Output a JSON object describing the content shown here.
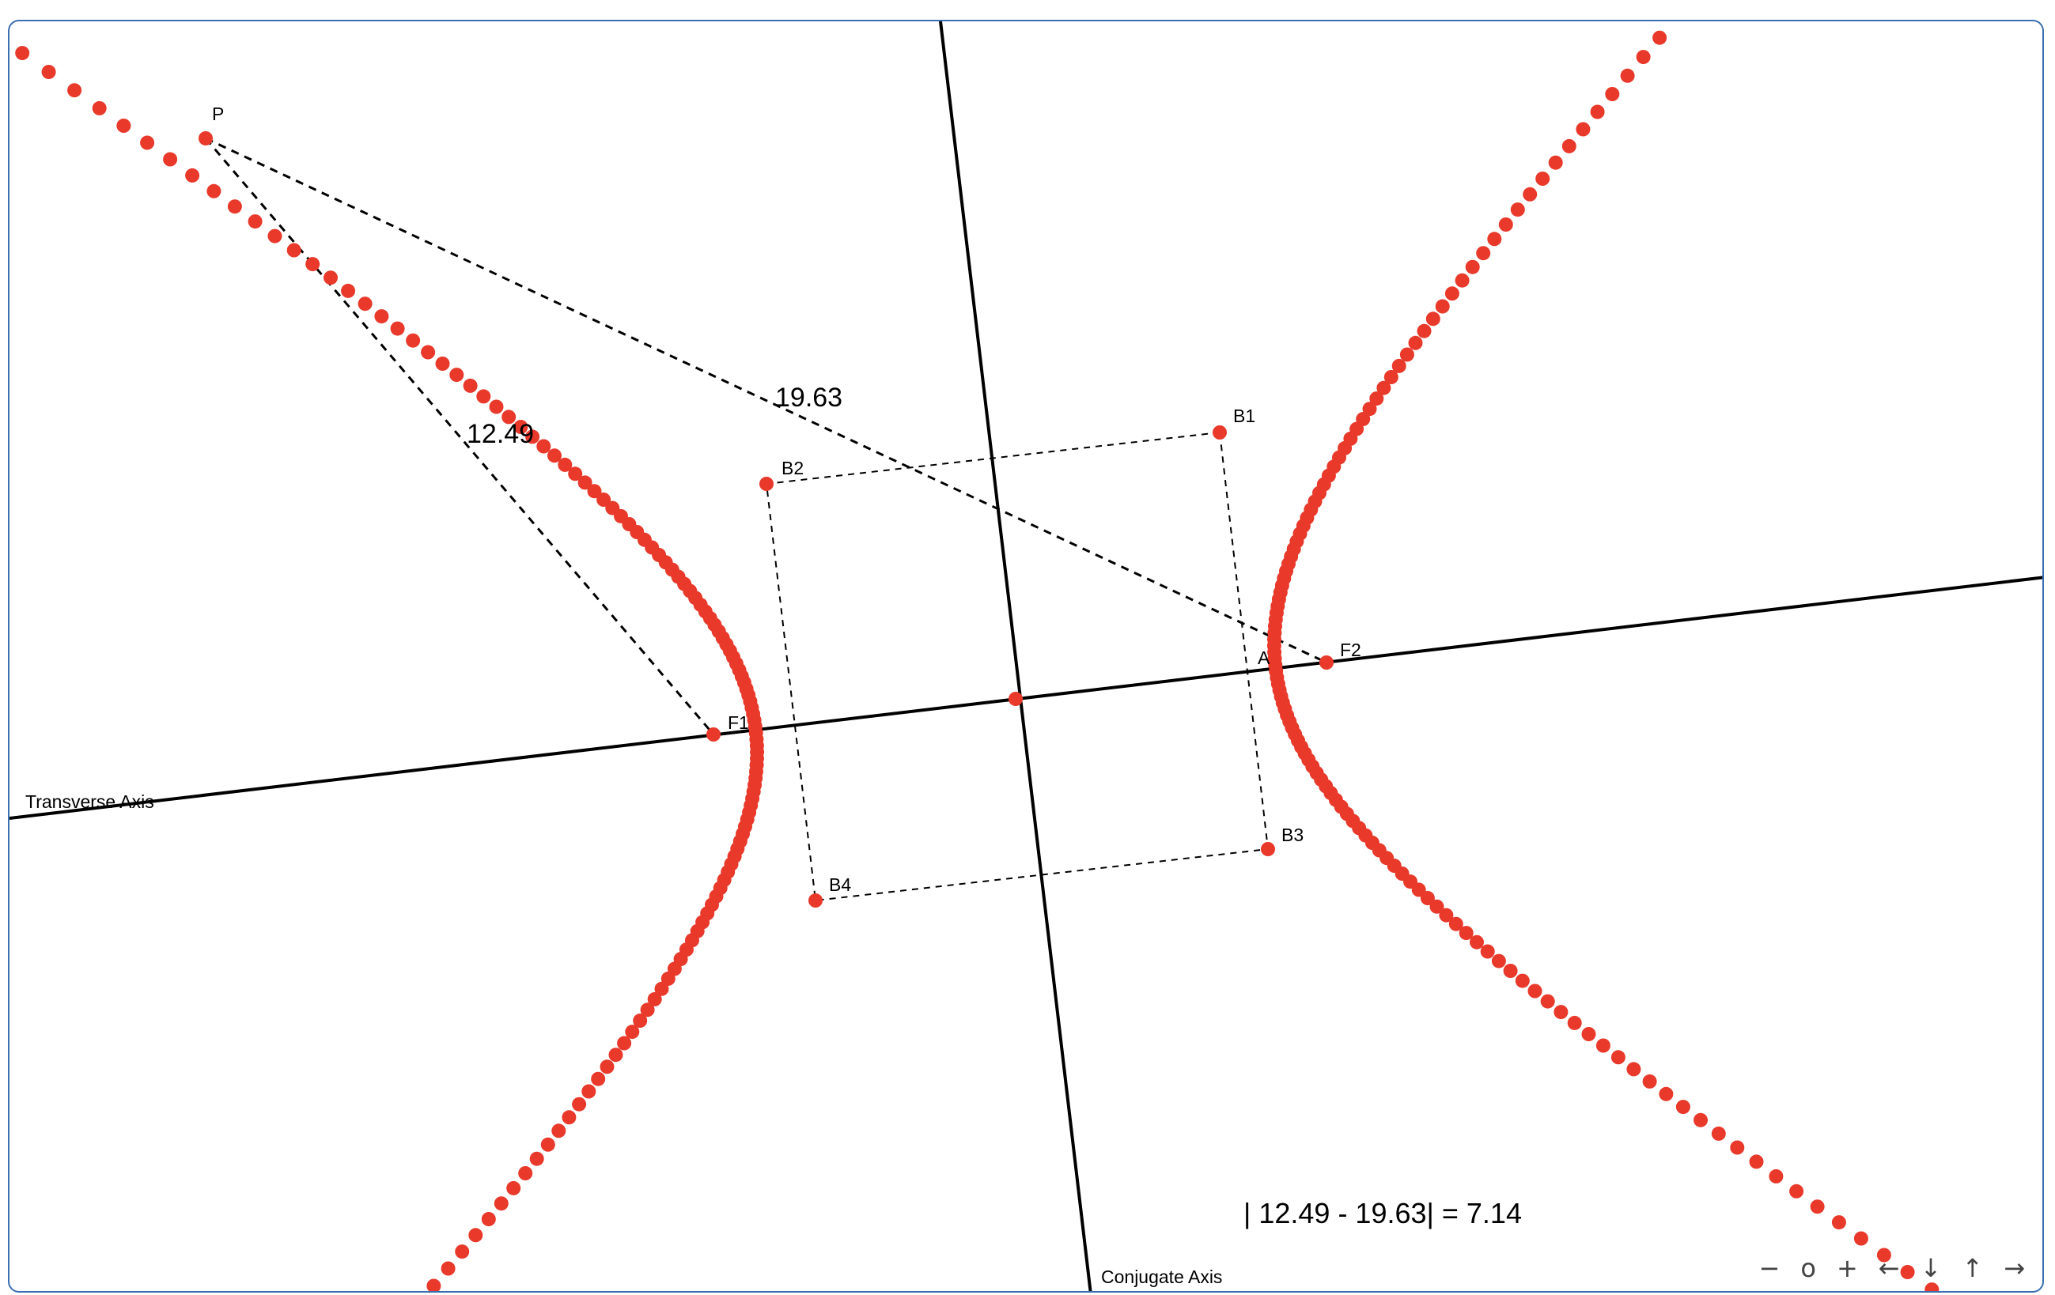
{
  "labels": {
    "p": "P",
    "f1": "F1",
    "f2": "F2",
    "a": "A",
    "b1": "B1",
    "b2": "B2",
    "b3": "B3",
    "b4": "B4",
    "transverse_axis": "Transverse Axis",
    "conjugate_axis": "Conjugate Axis",
    "dist_pf1": "12.49",
    "dist_pf2": "19.63",
    "formula": "| 12.49 - 19.63| = 7.14"
  },
  "nav": {
    "zoom_out": "−",
    "zoom_reset": "o",
    "zoom_in": "+",
    "left": "←",
    "down": "↓",
    "up": "↑",
    "right": "→"
  },
  "colors": {
    "trace": "#e8392b",
    "axis": "#000000",
    "border": "#3a6fb0"
  }
}
